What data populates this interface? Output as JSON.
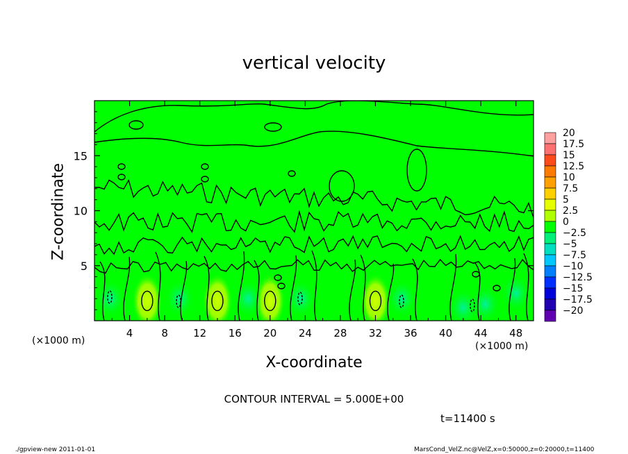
{
  "chart_data": {
    "type": "heatmap",
    "title": "vertical velocity",
    "xlabel": "X-coordinate",
    "ylabel": "Z-coordinate",
    "x_unit_left": "(×1000 m)",
    "x_unit_right": "(×1000 m)",
    "xlim": [
      0,
      50
    ],
    "ylim": [
      0,
      20
    ],
    "x_ticks": [
      "4",
      "8",
      "12",
      "16",
      "20",
      "24",
      "28",
      "32",
      "36",
      "40",
      "44",
      "48"
    ],
    "y_ticks": [
      "5",
      "10",
      "15"
    ],
    "colorbar_levels": [
      "20",
      "17.5",
      "15",
      "12.5",
      "10",
      "7.5",
      "5",
      "2.5",
      "0",
      "−2.5",
      "−5",
      "−7.5",
      "−10",
      "−12.5",
      "−15",
      "−17.5",
      "−20"
    ],
    "colorbar_colors": [
      "#ffa0a0",
      "#ff7070",
      "#ff4a1a",
      "#ff7a00",
      "#ffa000",
      "#ffd000",
      "#e6ff00",
      "#b0ff00",
      "#00ff00",
      "#00f07a",
      "#00e0c0",
      "#00c8ff",
      "#0080ff",
      "#0030ff",
      "#0000d8",
      "#2000b0",
      "#6000b0"
    ],
    "updraft_centers_x": [
      6,
      14,
      20,
      32
    ],
    "background_value": "0",
    "contour_interval": "CONTOUR INTERVAL = 5.000E+00",
    "time_label": "t=11400 s"
  },
  "footer": {
    "left": "./gpview-new  2011-01-01",
    "right": "MarsCond_VelZ.nc@VelZ,x=0:50000,z=0:20000,t=11400"
  }
}
